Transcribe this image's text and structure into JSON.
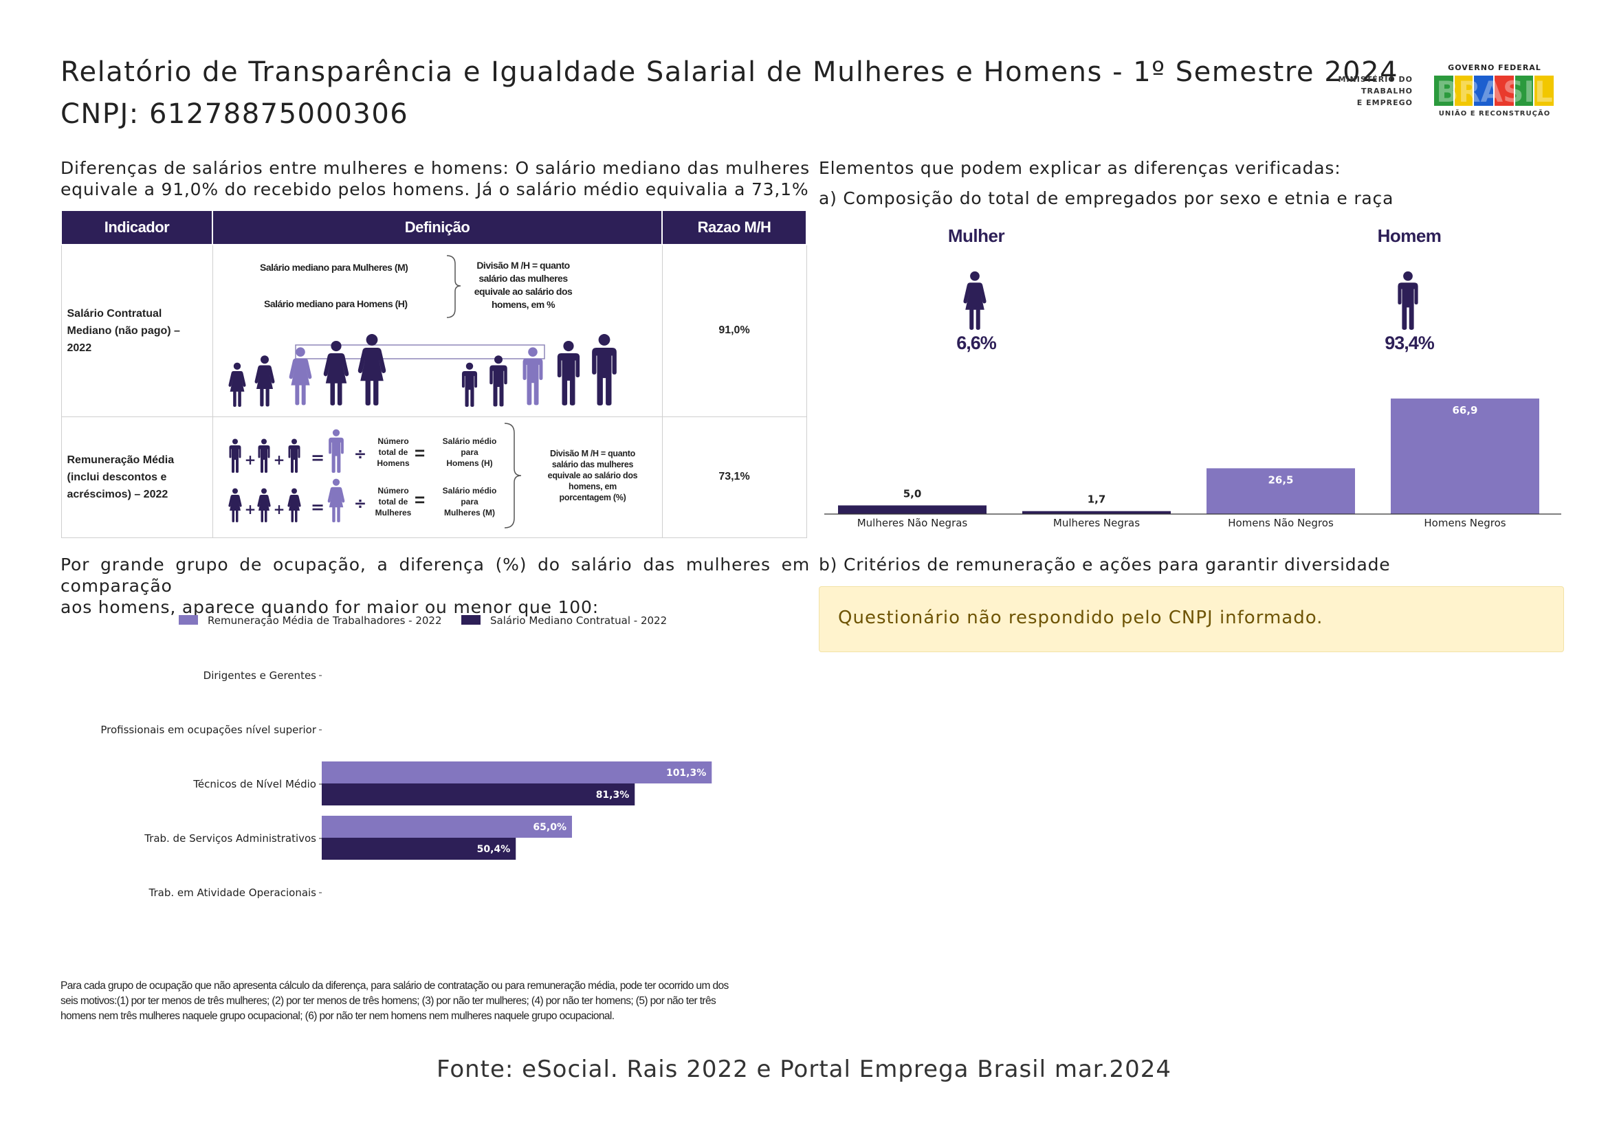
{
  "header": {
    "title": "Relatório de Transparência e Igualdade Salarial de Mulheres e Homens - 1º Semestre 2024",
    "cnpj": "CNPJ: 61278875000306",
    "logo_mte_lines": [
      "MINISTÉRIO DO",
      "TRABALHO",
      "E EMPREGO"
    ],
    "logo_gov_top": "GOVERNO FEDERAL",
    "logo_gov_word": "BRASIL",
    "logo_gov_bottom": "UNIÃO E RECONSTRUÇÃO"
  },
  "colors": {
    "dark": "#2d1f57",
    "light": "#8376bf",
    "notice_bg": "#fff3cd",
    "notice_text": "#6e5405"
  },
  "intro": {
    "line1": "Diferenças de salários entre mulheres e homens: O salário mediano das mulheres",
    "line2": "equivale a 91,0% do recebido pelos homens. Já o salário médio equivalia a 73,1%"
  },
  "table": {
    "headers": [
      "Indicador",
      "Definição",
      "Razao M/H"
    ],
    "rows": [
      {
        "label_lines": [
          "Salário Contratual",
          "Mediano (não pago) –",
          "2022"
        ],
        "ratio": "91,0%",
        "def_left_1": "Salário mediano para Mulheres (M)",
        "def_left_2": "Salário mediano para Homens (H)",
        "def_right_lines": [
          "Divisão M /H = quanto",
          "salário das mulheres",
          "equivale ao salário dos",
          "homens, em %"
        ]
      },
      {
        "label_lines": [
          "Remuneração Média",
          "(inclui descontos e",
          "acréscimos) – 2022"
        ],
        "ratio": "73,1%",
        "num_h_lines": [
          "Número",
          "total de",
          "Homens"
        ],
        "sal_h_lines": [
          "Salário médio",
          "para",
          "Homens (H)"
        ],
        "num_m_lines": [
          "Número",
          "total de",
          "Mulheres"
        ],
        "sal_m_lines": [
          "Salário médio",
          "para",
          "Mulheres (M)"
        ],
        "def_right_lines": [
          "Divisão M /H = quanto",
          "salário das mulheres",
          "equivale ao salário dos",
          "homens, em",
          "porcentagem (%)"
        ]
      }
    ]
  },
  "right": {
    "heading": "Elementos que podem explicar as diferenças verificadas:",
    "sub_a": "a) Composição do total de empregados por sexo e etnia e raça",
    "mulher_label": "Mulher",
    "homem_label": "Homem",
    "mulher_pct": "6,6%",
    "homem_pct": "93,4%",
    "sub_b": "b) Critérios de remuneração e ações para garantir diversidade",
    "notice": "Questionário não respondido pelo CNPJ informado."
  },
  "occupation_intro": {
    "line1": "Por grande grupo de ocupação, a diferença (%) do salário das mulheres em comparação",
    "line2": "aos homens, aparece quando for maior ou menor que 100:"
  },
  "chart_data": [
    {
      "type": "bar",
      "categories": [
        "Mulheres Não Negras",
        "Mulheres Negras",
        "Homens Não Negros",
        "Homens Negros"
      ],
      "values": [
        5.0,
        1.7,
        26.5,
        66.9
      ],
      "value_labels": [
        "5,0",
        "1,7",
        "26,5",
        "66,9"
      ],
      "bar_colors": [
        "#2d1f57",
        "#2d1f57",
        "#8376bf",
        "#8376bf"
      ],
      "ylim": [
        0,
        70
      ],
      "grid": false
    },
    {
      "type": "bar",
      "orientation": "horizontal",
      "categories": [
        "Dirigentes e Gerentes",
        "Profissionais em ocupações nível superior",
        "Técnicos de Nível Médio",
        "Trab. de Serviços Administrativos",
        "Trab. em Atividade Operacionais"
      ],
      "series": [
        {
          "name": "Remuneração Média de Trabalhadores - 2022",
          "color": "#8376bf",
          "values": [
            null,
            null,
            101.3,
            65.0,
            null
          ],
          "labels": [
            null,
            null,
            "101,3%",
            "65,0%",
            null
          ]
        },
        {
          "name": "Salário Mediano Contratual - 2022",
          "color": "#2d1f57",
          "values": [
            null,
            null,
            81.3,
            50.4,
            null
          ],
          "labels": [
            null,
            null,
            "81,3%",
            "50,4%",
            null
          ]
        }
      ],
      "xlim": [
        0,
        140
      ],
      "legend": "top",
      "grid": false
    }
  ],
  "footnote": {
    "line1": "Para cada grupo de ocupação que não apresenta cálculo da diferença, para salário de contratação ou para remuneração média, pode ter ocorrido um dos",
    "line2": "seis motivos:(1) por ter menos de três mulheres; (2) por ter menos de três homens; (3) por não ter mulheres; (4) por não ter homens; (5) por não ter três",
    "line3": "homens nem três mulheres naquele grupo ocupacional; (6) por não ter nem homens nem mulheres naquele grupo ocupacional."
  },
  "fonte": "Fonte: eSocial. Rais 2022 e Portal Emprega Brasil mar.2024"
}
